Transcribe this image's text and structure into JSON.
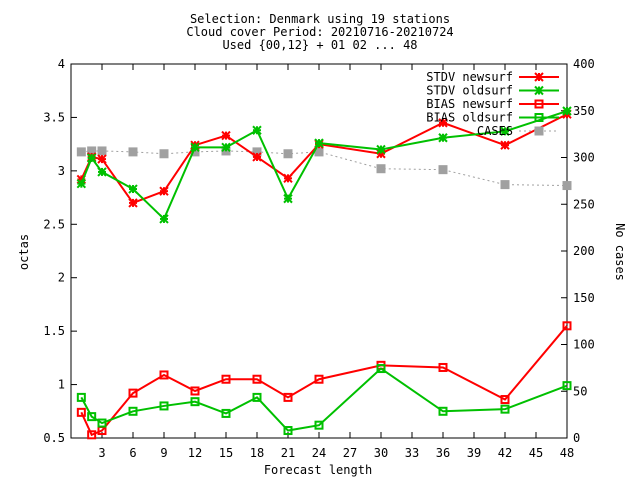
{
  "chart_data": {
    "type": "line",
    "title_lines": [
      "Selection: Denmark using    19 stations",
      "Cloud cover   Period: 20210716-20210724",
      "Used {00,12} + 01 02 ... 48"
    ],
    "xlabel": "Forecast length",
    "ylabel": "octas",
    "y2label": "No cases",
    "xlim": [
      0,
      48
    ],
    "ylim": [
      0.5,
      4
    ],
    "y2lim": [
      0,
      400
    ],
    "x_ticks": [
      3,
      6,
      9,
      12,
      15,
      18,
      21,
      24,
      27,
      30,
      33,
      36,
      39,
      42,
      45,
      48
    ],
    "y_ticks": [
      0.5,
      1,
      1.5,
      2,
      2.5,
      3,
      3.5,
      4
    ],
    "y2_ticks": [
      0,
      50,
      100,
      150,
      200,
      250,
      300,
      350,
      400
    ],
    "legend_position": "top-right",
    "series": [
      {
        "name": "STDV newsurf",
        "color": "#ff0000",
        "marker": "star",
        "axis": "y",
        "x": [
          1,
          2,
          3,
          6,
          9,
          12,
          15,
          18,
          21,
          24,
          30,
          36,
          42,
          48
        ],
        "values": [
          2.92,
          3.13,
          3.11,
          2.7,
          2.81,
          3.24,
          3.33,
          3.13,
          2.93,
          3.25,
          3.16,
          3.45,
          3.24,
          3.53
        ]
      },
      {
        "name": "STDV oldsurf",
        "color": "#00c000",
        "marker": "star",
        "axis": "y",
        "x": [
          1,
          2,
          3,
          6,
          9,
          12,
          15,
          18,
          21,
          24,
          30,
          36,
          42,
          48
        ],
        "values": [
          2.88,
          3.12,
          2.99,
          2.83,
          2.55,
          3.22,
          3.22,
          3.38,
          2.74,
          3.26,
          3.2,
          3.31,
          3.37,
          3.56
        ]
      },
      {
        "name": "BIAS newsurf",
        "color": "#ff0000",
        "marker": "square",
        "axis": "y",
        "x": [
          1,
          2,
          3,
          6,
          9,
          12,
          15,
          18,
          21,
          24,
          30,
          36,
          42,
          48
        ],
        "values": [
          0.74,
          0.53,
          0.57,
          0.92,
          1.09,
          0.94,
          1.05,
          1.05,
          0.88,
          1.05,
          1.18,
          1.16,
          0.86,
          1.55
        ]
      },
      {
        "name": "BIAS oldsurf",
        "color": "#00c000",
        "marker": "square",
        "axis": "y",
        "x": [
          1,
          2,
          3,
          6,
          9,
          12,
          15,
          18,
          21,
          24,
          30,
          36,
          42,
          48
        ],
        "values": [
          0.88,
          0.7,
          0.64,
          0.75,
          0.8,
          0.84,
          0.73,
          0.88,
          0.57,
          0.62,
          1.15,
          0.75,
          0.77,
          0.99
        ]
      },
      {
        "name": "CASES",
        "color": "#a0a0a0",
        "marker": "filled-square",
        "axis": "y2",
        "x": [
          1,
          2,
          3,
          6,
          9,
          12,
          15,
          18,
          21,
          24,
          30,
          36,
          42,
          48
        ],
        "values": [
          306,
          307,
          307,
          306,
          304,
          306,
          307,
          306,
          304,
          306,
          288,
          287,
          271,
          270
        ]
      }
    ]
  }
}
